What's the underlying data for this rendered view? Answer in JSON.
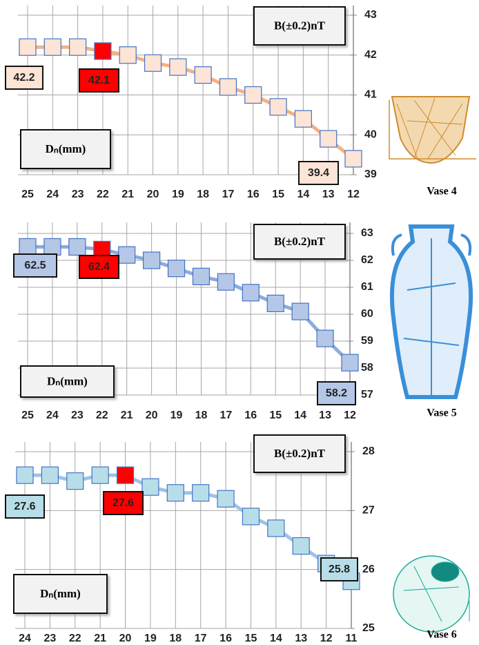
{
  "chart_data": [
    {
      "type": "line",
      "caption": "Vase 4",
      "x_label": "Dₙ(mm)",
      "y_label": "B(±0.2)nT",
      "categories": [
        "25",
        "24",
        "23",
        "22",
        "21",
        "20",
        "19",
        "18",
        "17",
        "16",
        "15",
        "14",
        "13",
        "12"
      ],
      "series": [
        {
          "values": [
            42.2,
            42.2,
            42.2,
            42.1,
            42.0,
            41.8,
            41.7,
            41.5,
            41.2,
            41.0,
            40.7,
            40.4,
            39.9,
            39.4
          ],
          "color": "#f4b183",
          "marker_edge_color": "#4472c4",
          "marker_colors": [
            "#fce4d6",
            "#fce4d6",
            "#fce4d6",
            "#ff0000",
            "#fce4d6",
            "#fce4d6",
            "#fce4d6",
            "#fce4d6",
            "#fce4d6",
            "#fce4d6",
            "#fce4d6",
            "#fce4d6",
            "#fce4d6",
            "#fce4d6"
          ]
        }
      ],
      "ylim": [
        39,
        43
      ],
      "yticks": [
        39,
        40,
        41,
        42,
        43
      ],
      "grid": true,
      "y_axis_side": "right"
    },
    {
      "type": "line",
      "caption": "Vase 5",
      "x_label": "Dₙ(mm)",
      "y_label": "B(±0.2)nT",
      "categories": [
        "25",
        "24",
        "23",
        "22",
        "21",
        "20",
        "19",
        "18",
        "17",
        "16",
        "15",
        "14",
        "13",
        "12"
      ],
      "series": [
        {
          "values": [
            62.5,
            62.5,
            62.5,
            62.4,
            62.2,
            62.0,
            61.7,
            61.4,
            61.2,
            60.8,
            60.4,
            60.1,
            59.1,
            58.2
          ],
          "color": "#8faadc",
          "marker_edge_color": "#4472c4",
          "marker_colors": [
            "#b4c7e7",
            "#b4c7e7",
            "#b4c7e7",
            "#ff0000",
            "#b4c7e7",
            "#b4c7e7",
            "#b4c7e7",
            "#b4c7e7",
            "#b4c7e7",
            "#b4c7e7",
            "#b4c7e7",
            "#b4c7e7",
            "#b4c7e7",
            "#b4c7e7"
          ]
        }
      ],
      "ylim": [
        57,
        63
      ],
      "yticks": [
        57,
        58,
        59,
        60,
        61,
        62,
        63
      ],
      "grid": true,
      "y_axis_side": "right"
    },
    {
      "type": "line",
      "caption": "Vase 6",
      "x_label": "Dₙ(mm)",
      "y_label": "B(±0.2)nT",
      "categories": [
        "24",
        "23",
        "22",
        "21",
        "20",
        "19",
        "18",
        "17",
        "16",
        "15",
        "14",
        "13",
        "12",
        "11"
      ],
      "series": [
        {
          "values": [
            27.6,
            27.6,
            27.5,
            27.6,
            27.6,
            27.4,
            27.3,
            27.3,
            27.2,
            26.9,
            26.7,
            26.4,
            26.1,
            25.8
          ],
          "color": "#9dc3e6",
          "marker_edge_color": "#4472c4",
          "marker_colors": [
            "#b7dee8",
            "#b7dee8",
            "#b7dee8",
            "#b7dee8",
            "#ff0000",
            "#b7dee8",
            "#b7dee8",
            "#b7dee8",
            "#b7dee8",
            "#b7dee8",
            "#b7dee8",
            "#b7dee8",
            "#b7dee8",
            "#b7dee8"
          ]
        }
      ],
      "ylim": [
        25,
        28
      ],
      "yticks": [
        25,
        26,
        27,
        28
      ],
      "grid": true,
      "y_axis_side": "right"
    }
  ]
}
